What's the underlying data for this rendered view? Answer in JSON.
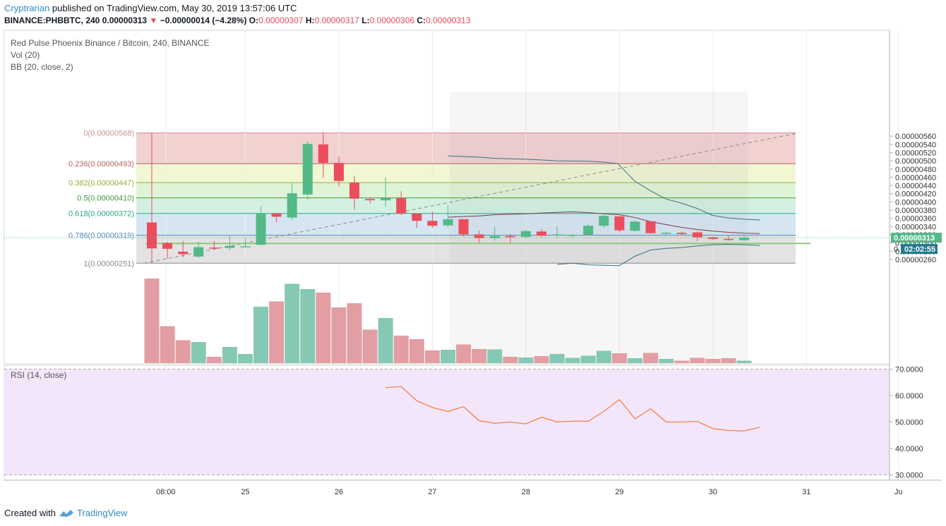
{
  "header": {
    "author": "Cryptrarian",
    "published": "published on TradingView.com, May 30, 2019 13:57:06 UTC",
    "symbol": "BINANCE:PHBBTC, 240",
    "last": "0.00000313",
    "change": "−0.00000014 (−4.28%)",
    "o_label": "O:",
    "o": "0.00000307",
    "h_label": "H:",
    "h": "0.00000317",
    "l_label": "L:",
    "l": "0.00000306",
    "c_label": "C:",
    "c": "0.00000313"
  },
  "legend": {
    "title": "Red Pulse Phoenix Binance / Bitcoin, 240, BINANCE",
    "vol": "Vol (20)",
    "bb": "BB (20, close, 2)",
    "rsi": "RSI (14, close)"
  },
  "footer": {
    "created_with": "Created with",
    "brand": "TradingView"
  },
  "colors": {
    "up": "#53b987",
    "down": "#eb4d5c",
    "rsi_line": "#f57f44",
    "rsi_bg": "#f3e6fb",
    "bb_line": "#33727e"
  },
  "chart_data": [
    {
      "type": "candlestick",
      "title": "Red Pulse Phoenix Binance / Bitcoin, 240, BINANCE",
      "ylim": [
        2.4e-06,
        5.7e-06
      ],
      "y_ticks": [
        "0.00000260",
        "0.00000280",
        "0.00000300",
        "0.00000320",
        "0.00000340",
        "0.00000360",
        "0.00000380",
        "0.00000400",
        "0.00000420",
        "0.00000440",
        "0.00000460",
        "0.00000480",
        "0.00000500",
        "0.00000520",
        "0.00000540",
        "0.00000560"
      ],
      "x_ticks": [
        {
          "label": "08:00",
          "index": 0.9
        },
        {
          "label": "25",
          "index": 6
        },
        {
          "label": "26",
          "index": 12
        },
        {
          "label": "27",
          "index": 18
        },
        {
          "label": "28",
          "index": 24
        },
        {
          "label": "29",
          "index": 30
        },
        {
          "label": "30",
          "index": 36
        },
        {
          "label": "31",
          "index": 42
        },
        {
          "label": "Ju",
          "index": 47.9
        }
      ],
      "candles": [
        {
          "o": 3.5,
          "h": 5.68,
          "l": 2.51,
          "c": 2.87
        },
        {
          "o": 3.0,
          "h": 3.03,
          "l": 2.62,
          "c": 2.86
        },
        {
          "o": 2.79,
          "h": 3.05,
          "l": 2.65,
          "c": 2.73
        },
        {
          "o": 2.67,
          "h": 3.03,
          "l": 2.64,
          "c": 2.9
        },
        {
          "o": 2.89,
          "h": 3.05,
          "l": 2.84,
          "c": 2.87
        },
        {
          "o": 2.88,
          "h": 3.2,
          "l": 2.82,
          "c": 2.93
        },
        {
          "o": 2.92,
          "h": 3.12,
          "l": 2.9,
          "c": 2.92
        },
        {
          "o": 2.96,
          "h": 3.9,
          "l": 2.94,
          "c": 3.73
        },
        {
          "o": 3.72,
          "h": 3.74,
          "l": 3.5,
          "c": 3.64
        },
        {
          "o": 3.62,
          "h": 4.45,
          "l": 3.56,
          "c": 4.21
        },
        {
          "o": 4.18,
          "h": 5.48,
          "l": 4.06,
          "c": 5.41
        },
        {
          "o": 5.4,
          "h": 5.69,
          "l": 4.59,
          "c": 4.95
        },
        {
          "o": 4.95,
          "h": 5.1,
          "l": 4.38,
          "c": 4.51
        },
        {
          "o": 4.47,
          "h": 4.63,
          "l": 3.81,
          "c": 4.08
        },
        {
          "o": 4.07,
          "h": 4.11,
          "l": 3.96,
          "c": 4.04
        },
        {
          "o": 4.04,
          "h": 4.59,
          "l": 3.89,
          "c": 4.09
        },
        {
          "o": 4.09,
          "h": 4.26,
          "l": 3.68,
          "c": 3.72
        },
        {
          "o": 3.72,
          "h": 3.72,
          "l": 3.37,
          "c": 3.54
        },
        {
          "o": 3.54,
          "h": 3.77,
          "l": 3.37,
          "c": 3.42
        },
        {
          "o": 3.43,
          "h": 3.92,
          "l": 3.38,
          "c": 3.58
        },
        {
          "o": 3.58,
          "h": 3.58,
          "l": 3.16,
          "c": 3.21
        },
        {
          "o": 3.21,
          "h": 3.3,
          "l": 3.01,
          "c": 3.12
        },
        {
          "o": 3.12,
          "h": 3.4,
          "l": 3.05,
          "c": 3.17
        },
        {
          "o": 3.17,
          "h": 3.22,
          "l": 3.01,
          "c": 3.15
        },
        {
          "o": 3.15,
          "h": 3.32,
          "l": 3.11,
          "c": 3.29
        },
        {
          "o": 3.28,
          "h": 3.34,
          "l": 3.14,
          "c": 3.18
        },
        {
          "o": 3.19,
          "h": 3.4,
          "l": 3.12,
          "c": 3.21
        },
        {
          "o": 3.2,
          "h": 3.22,
          "l": 3.15,
          "c": 3.2
        },
        {
          "o": 3.2,
          "h": 3.47,
          "l": 3.18,
          "c": 3.42
        },
        {
          "o": 3.42,
          "h": 3.68,
          "l": 3.38,
          "c": 3.66
        },
        {
          "o": 3.65,
          "h": 3.65,
          "l": 3.26,
          "c": 3.31
        },
        {
          "o": 3.3,
          "h": 3.55,
          "l": 3.28,
          "c": 3.52
        },
        {
          "o": 3.53,
          "h": 3.53,
          "l": 3.22,
          "c": 3.24
        },
        {
          "o": 3.24,
          "h": 3.28,
          "l": 3.2,
          "c": 3.25
        },
        {
          "o": 3.25,
          "h": 3.28,
          "l": 3.2,
          "c": 3.22
        },
        {
          "o": 3.26,
          "h": 3.28,
          "l": 3.05,
          "c": 3.14
        },
        {
          "o": 3.14,
          "h": 3.16,
          "l": 3.07,
          "c": 3.1
        },
        {
          "o": 3.1,
          "h": 3.19,
          "l": 3.06,
          "c": 3.08
        },
        {
          "o": 3.07,
          "h": 3.17,
          "l": 3.06,
          "c": 3.13
        }
      ],
      "volume": [
        240,
        105,
        65,
        60,
        18,
        46,
        26,
        160,
        175,
        225,
        210,
        200,
        158,
        170,
        95,
        128,
        78,
        68,
        36,
        38,
        53,
        40,
        39,
        18,
        16,
        20,
        26,
        15,
        21,
        35,
        28,
        14,
        29,
        12,
        7,
        15,
        12,
        14,
        7
      ],
      "fibonacci": [
        {
          "label": "0(0.00000568)",
          "level": 0,
          "value": 5.68,
          "color": "#cf9090",
          "fill": "#f2d1d1"
        },
        {
          "label": "0.236(0.00000493)",
          "level": 0.236,
          "value": 4.93,
          "color": "#b56060",
          "fill": "#f0f7d2"
        },
        {
          "label": "0.382(0.00000447)",
          "level": 0.382,
          "value": 4.47,
          "color": "#98b03a",
          "fill": "#dff4d6"
        },
        {
          "label": "0.5(0.00000410)",
          "level": 0.5,
          "value": 4.1,
          "color": "#3f9c3f",
          "fill": "#d4f0e3"
        },
        {
          "label": "0.618(0.00000372)",
          "level": 0.618,
          "value": 3.72,
          "color": "#2aa787",
          "fill": "#d5e6f2"
        },
        {
          "label": "0.786(0.00000319)",
          "level": 0.786,
          "value": 3.19,
          "color": "#4f8ab7",
          "fill": "#e3e3e3"
        },
        {
          "label": "1(0.00000251)",
          "level": 1,
          "value": 2.51,
          "color": "#8a8a8a",
          "fill": null
        }
      ],
      "bollinger": {
        "upper": [
          [
            19,
            5.12
          ],
          [
            21,
            5.09
          ],
          [
            22,
            5.06
          ],
          [
            24,
            5.04
          ],
          [
            26,
            5.0
          ],
          [
            28,
            4.99
          ],
          [
            29,
            4.97
          ],
          [
            29.9,
            4.93
          ],
          [
            31,
            4.5
          ],
          [
            32,
            4.27
          ],
          [
            33,
            4.07
          ],
          [
            34,
            3.97
          ],
          [
            35,
            3.84
          ],
          [
            36,
            3.67
          ],
          [
            37,
            3.61
          ],
          [
            38,
            3.58
          ],
          [
            39,
            3.56
          ]
        ],
        "middle": [
          [
            19,
            3.63
          ],
          [
            21,
            3.66
          ],
          [
            22,
            3.69
          ],
          [
            24,
            3.71
          ],
          [
            25,
            3.73
          ],
          [
            27,
            3.76
          ],
          [
            28,
            3.74
          ],
          [
            29,
            3.71
          ],
          [
            30,
            3.69
          ],
          [
            31,
            3.62
          ],
          [
            32,
            3.52
          ],
          [
            33,
            3.45
          ],
          [
            34,
            3.38
          ],
          [
            35,
            3.33
          ],
          [
            36,
            3.29
          ],
          [
            37,
            3.26
          ],
          [
            38,
            3.24
          ],
          [
            39,
            3.23
          ]
        ],
        "lower": [
          [
            26,
            2.48
          ],
          [
            27,
            2.51
          ],
          [
            28,
            2.47
          ],
          [
            30,
            2.45
          ],
          [
            31,
            2.68
          ],
          [
            32,
            2.83
          ],
          [
            33,
            2.87
          ],
          [
            34,
            2.89
          ],
          [
            35,
            2.93
          ],
          [
            36,
            2.96
          ],
          [
            37,
            2.97
          ],
          [
            38,
            2.96
          ],
          [
            39,
            2.94
          ]
        ]
      },
      "trendline": {
        "from": {
          "index": -0.5,
          "value": 2.51
        },
        "to": {
          "index": 41.5,
          "value": 5.68
        }
      },
      "horizontal_line": 2.99,
      "last_price_label": "0.00000313",
      "countdown_label": "02:02:55",
      "axis_partial_label": "0."
    },
    {
      "type": "line",
      "title": "RSI (14, close)",
      "ylim": [
        27,
        71
      ],
      "y_ticks": [
        "30.0000",
        "40.0000",
        "50.0000",
        "60.0000",
        "70.0000"
      ],
      "bands": [
        70,
        30
      ],
      "values": [
        [
          15,
          63.0
        ],
        [
          16,
          63.4
        ],
        [
          17,
          58.0
        ],
        [
          18,
          55.5
        ],
        [
          19,
          54.0
        ],
        [
          20,
          55.8
        ],
        [
          21,
          50.5
        ],
        [
          22,
          49.5
        ],
        [
          23,
          50.0
        ],
        [
          24,
          49.3
        ],
        [
          25,
          51.8
        ],
        [
          26,
          50.0
        ],
        [
          27,
          50.3
        ],
        [
          28,
          50.3
        ],
        [
          29,
          54.0
        ],
        [
          30,
          58.5
        ],
        [
          31,
          51.2
        ],
        [
          32,
          55.0
        ],
        [
          33,
          50.0
        ],
        [
          34,
          50.0
        ],
        [
          35,
          50.2
        ],
        [
          36,
          47.5
        ],
        [
          37,
          46.8
        ],
        [
          38,
          46.6
        ],
        [
          39,
          48.0
        ]
      ]
    }
  ]
}
